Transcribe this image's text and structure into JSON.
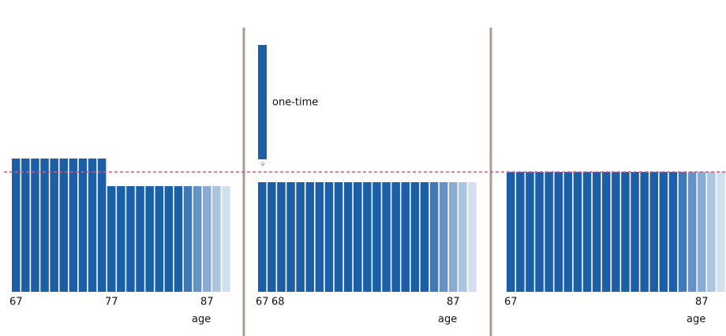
{
  "panels": [
    {
      "ticks": [
        67,
        77,
        87
      ],
      "axis_label": "age"
    },
    {
      "ticks": [
        67,
        68,
        87
      ],
      "axis_label": "age",
      "annotation": "one-time"
    },
    {
      "ticks": [
        67,
        87
      ],
      "axis_label": "age"
    }
  ]
}
